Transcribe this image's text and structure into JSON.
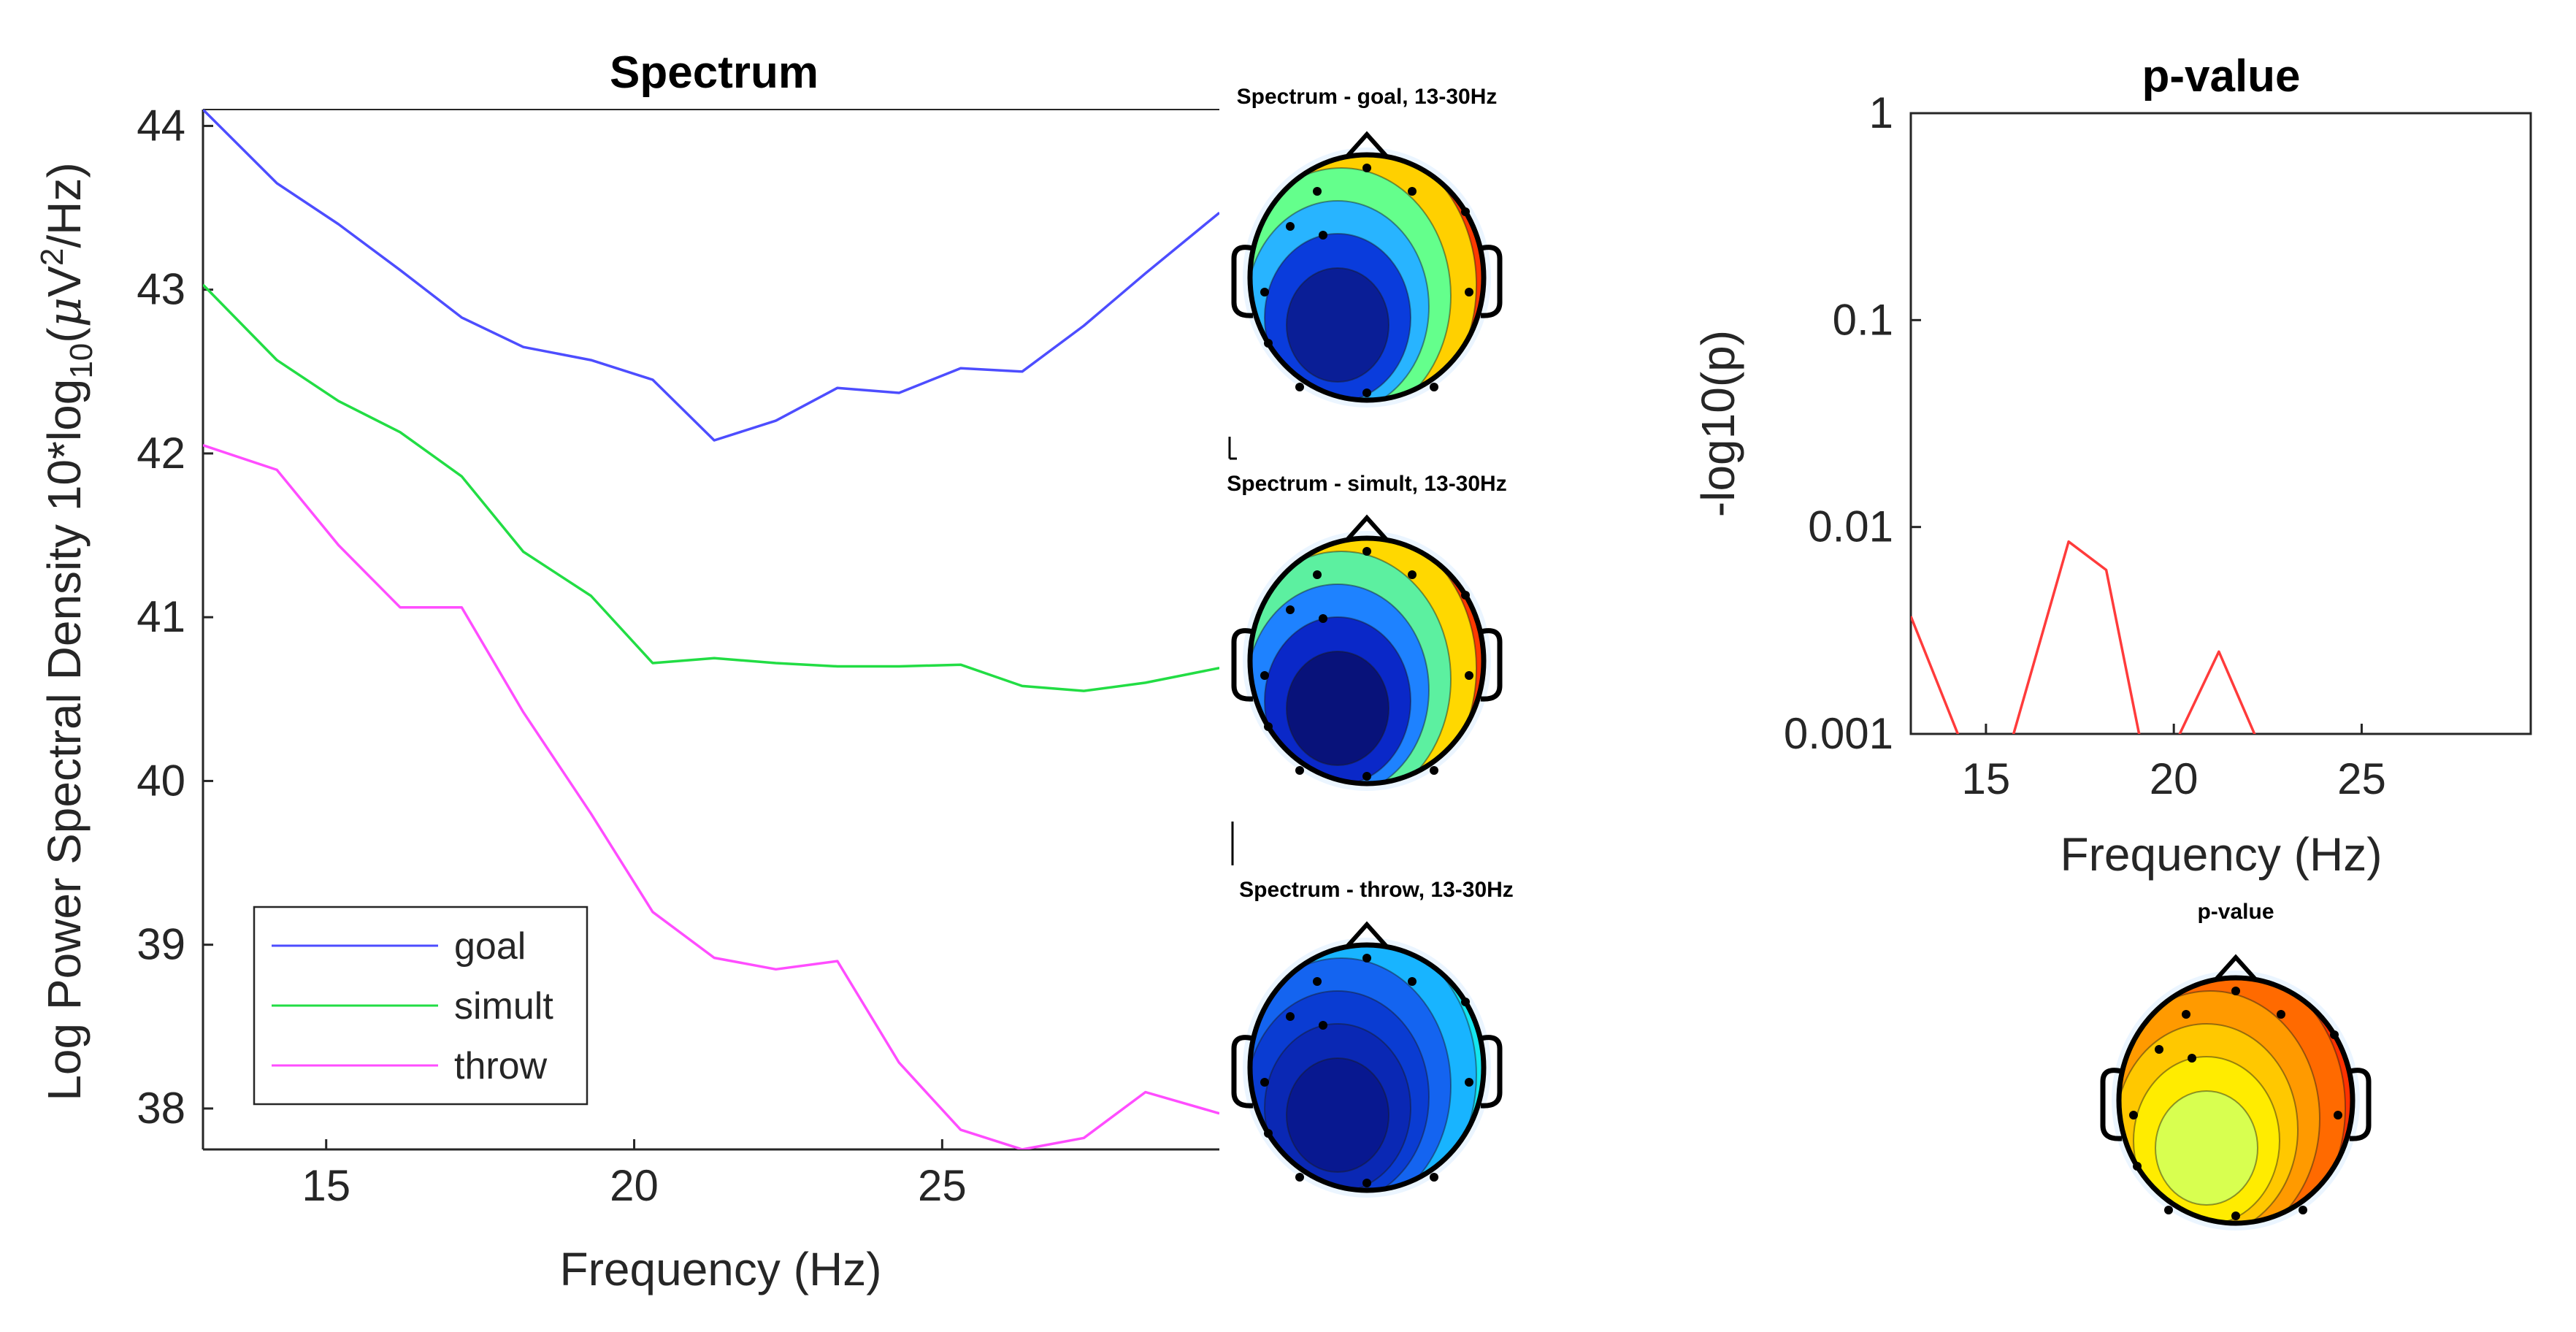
{
  "chart_data": [
    {
      "id": "spectrum",
      "type": "line",
      "title": "Spectrum",
      "xlabel": "Frequency (Hz)",
      "ylabel_parts": [
        "Log Power Spectral Density  10*log",
        "10",
        "(",
        "μ",
        "V",
        "2",
        "/Hz)"
      ],
      "xlim": [
        13,
        29.5
      ],
      "ylim": [
        37.75,
        44.1
      ],
      "xticks": [
        "15",
        "20",
        "25"
      ],
      "xtick_values": [
        15,
        20,
        25
      ],
      "yticks": [
        "38",
        "39",
        "40",
        "41",
        "42",
        "43",
        "44"
      ],
      "ytick_values": [
        38,
        39,
        40,
        41,
        42,
        43,
        44
      ],
      "x": [
        13,
        14.2,
        15.2,
        16.2,
        17.2,
        18.2,
        19.3,
        20.3,
        21.3,
        22.3,
        23.3,
        24.3,
        25.3,
        26.3,
        27.3,
        28.3,
        29.5
      ],
      "series": [
        {
          "name": "goal",
          "color": "#4d4dff",
          "values": [
            44.1,
            43.65,
            43.4,
            43.12,
            42.83,
            42.65,
            42.57,
            42.45,
            42.08,
            42.2,
            42.4,
            42.37,
            42.52,
            42.5,
            42.78,
            43.1,
            43.47
          ]
        },
        {
          "name": "simult",
          "color": "#22dd44",
          "values": [
            43.03,
            42.57,
            42.32,
            42.13,
            41.86,
            41.4,
            41.13,
            40.72,
            40.75,
            40.72,
            40.7,
            40.7,
            40.71,
            40.58,
            40.55,
            40.6,
            40.69
          ]
        },
        {
          "name": "throw",
          "color": "#ff4dff",
          "values": [
            42.05,
            41.9,
            41.44,
            41.06,
            41.06,
            40.42,
            39.8,
            39.2,
            38.92,
            38.85,
            38.9,
            38.28,
            37.87,
            37.75,
            37.82,
            38.1,
            37.97
          ]
        }
      ],
      "legend": [
        "goal",
        "simult",
        "throw"
      ],
      "legend_position": "bottom-left"
    },
    {
      "id": "pvalue",
      "type": "line",
      "title": "p-value",
      "xlabel": "Frequency (Hz)",
      "ylabel": "-log10(p)",
      "yscale": "log",
      "xlim": [
        13,
        29.5
      ],
      "ylim": [
        0.001,
        1
      ],
      "xticks": [
        "15",
        "20",
        "25"
      ],
      "xtick_values": [
        15,
        20,
        25
      ],
      "yticks": [
        "0.001",
        "0.01",
        "0.1",
        "1"
      ],
      "ytick_values": [
        0.001,
        0.01,
        0.1,
        1
      ],
      "series": [
        {
          "name": "p-value",
          "color": "#ff3b3b",
          "segments": [
            {
              "x": [
                13,
                14.3
              ],
              "values": [
                0.0037,
                0.00095
              ]
            },
            {
              "x": [
                15.7,
                17.2,
                18.2,
                19.1
              ],
              "values": [
                0.00095,
                0.0085,
                0.0062,
                0.00095
              ]
            },
            {
              "x": [
                20.1,
                21.2,
                22.2
              ],
              "values": [
                0.00095,
                0.0025,
                0.00095
              ]
            }
          ]
        }
      ]
    }
  ],
  "topomaps": [
    {
      "title": "Spectrum - goal, 13-30Hz",
      "colors": [
        "#ff3a00",
        "#ffd000",
        "#64ff8c",
        "#28b4ff",
        "#0a3cdc",
        "#0a1e96"
      ]
    },
    {
      "title": "Spectrum - simult, 13-30Hz",
      "colors": [
        "#ff3a00",
        "#ffd800",
        "#5cf0a0",
        "#1e82ff",
        "#0a28c8",
        "#08127a"
      ]
    },
    {
      "title": "Spectrum - throw, 13-30Hz",
      "colors": [
        "#14e6f0",
        "#18b4ff",
        "#1464f0",
        "#0a3cd2",
        "#0a28b4",
        "#081890"
      ]
    },
    {
      "title": "p-value",
      "colors": [
        "#ff3200",
        "#ff6a00",
        "#ff9a00",
        "#ffc800",
        "#ffec00",
        "#d8ff50"
      ]
    }
  ]
}
